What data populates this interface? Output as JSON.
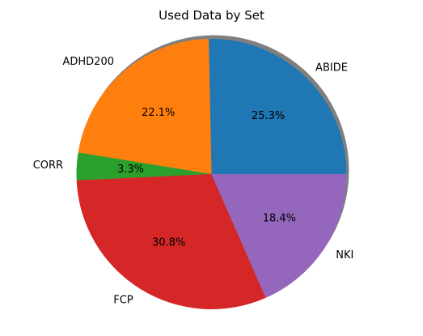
{
  "chart_data": {
    "type": "pie",
    "title": "Used Data by Set",
    "categories": [
      "ABIDE",
      "ADHD200",
      "CORR",
      "FCP",
      "NKI"
    ],
    "values": [
      25.3,
      22.1,
      3.3,
      30.8,
      18.4
    ],
    "value_labels": [
      "25.3%",
      "22.1%",
      "3.3%",
      "30.8%",
      "18.4%"
    ],
    "colors": [
      "#1f77b4",
      "#ff7f0e",
      "#2ca02c",
      "#d62728",
      "#9467bd"
    ],
    "start_angle_degrees": 0,
    "direction": "counterclockwise",
    "shadow": true,
    "legend": "none"
  }
}
